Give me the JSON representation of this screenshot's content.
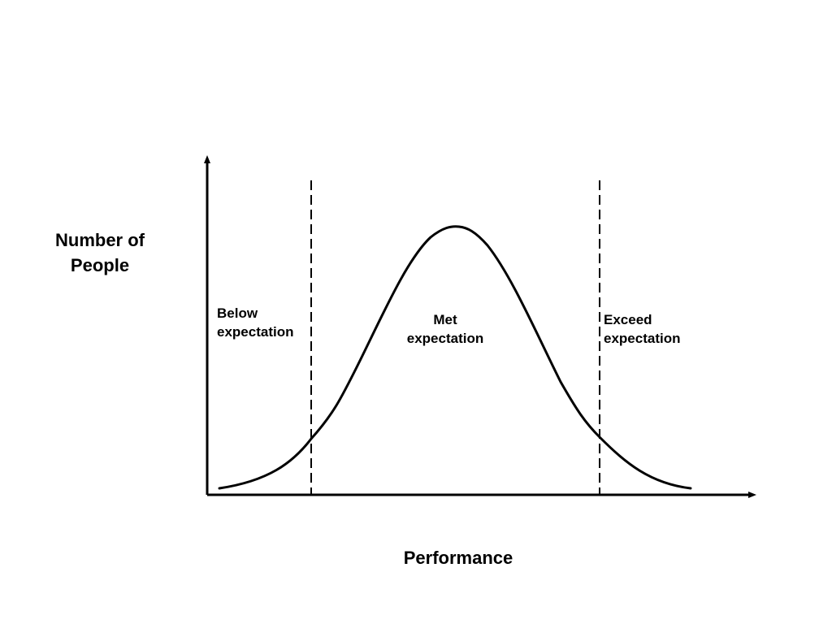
{
  "diagram": {
    "y_axis_label": [
      "Number of",
      "People"
    ],
    "x_axis_label": "Performance",
    "regions": [
      {
        "key": "below",
        "lines": [
          "Below",
          "expectation"
        ]
      },
      {
        "key": "met",
        "lines": [
          "Met",
          "expectation"
        ]
      },
      {
        "key": "exceed",
        "lines": [
          "Exceed",
          "expectation"
        ]
      }
    ],
    "curve": "bell-curve",
    "threshold_lines": "dashed",
    "colors": {
      "ink": "#000000",
      "background": "#ffffff"
    }
  }
}
